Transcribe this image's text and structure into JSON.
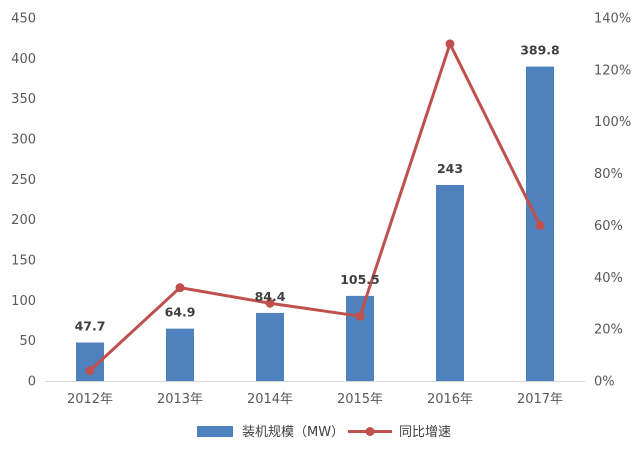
{
  "chart_data": {
    "type": "bar",
    "categories": [
      "2012年",
      "2013年",
      "2014年",
      "2015年",
      "2016年",
      "2017年"
    ],
    "series": [
      {
        "name": "装机规模（MW）",
        "type": "bar",
        "axis": "left",
        "color": "#4f81bd",
        "values": [
          47.7,
          64.9,
          84.4,
          105.5,
          243,
          389.8
        ],
        "data_labels": [
          "47.7",
          "64.9",
          "84.4",
          "105.5",
          "243",
          "389.8"
        ]
      },
      {
        "name": "同比增速",
        "type": "line",
        "axis": "right",
        "color": "#c0504d",
        "values": [
          0.04,
          0.36,
          0.3,
          0.25,
          1.3,
          0.6
        ]
      }
    ],
    "y_left": {
      "ylim": [
        0,
        450
      ],
      "ticks": [
        0,
        50,
        100,
        150,
        200,
        250,
        300,
        350,
        400,
        450
      ],
      "tick_labels": [
        "0",
        "50",
        "100",
        "150",
        "200",
        "250",
        "300",
        "350",
        "400",
        "450"
      ]
    },
    "y_right": {
      "ylim": [
        0,
        1.4
      ],
      "ticks": [
        0,
        0.2,
        0.4,
        0.6,
        0.8,
        1.0,
        1.2,
        1.4
      ],
      "tick_labels": [
        "0%",
        "20%",
        "40%",
        "60%",
        "80%",
        "100%",
        "120%",
        "140%"
      ]
    },
    "grid": false,
    "legend_position": "bottom"
  }
}
